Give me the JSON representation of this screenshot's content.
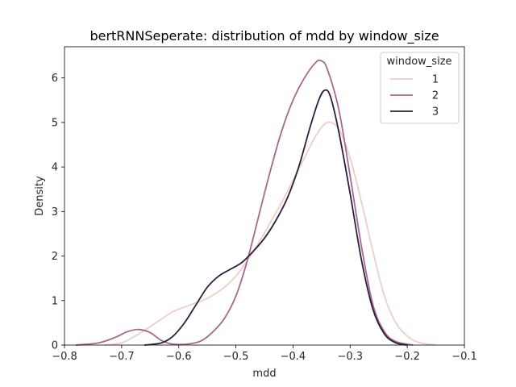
{
  "chart_data": {
    "type": "line",
    "title": "bertRNNSeperate: distribution of mdd by window_size",
    "xlabel": "mdd",
    "ylabel": "Density",
    "xlim": [
      -0.8,
      -0.1
    ],
    "ylim": [
      0,
      6.7
    ],
    "x_ticks": [
      -0.8,
      -0.7,
      -0.6,
      -0.5,
      -0.4,
      -0.3,
      -0.2,
      -0.1
    ],
    "x_tick_labels": [
      "−0.8",
      "−0.7",
      "−0.6",
      "−0.5",
      "−0.4",
      "−0.3",
      "−0.2",
      "−0.1"
    ],
    "y_ticks": [
      0,
      1,
      2,
      3,
      4,
      5,
      6
    ],
    "y_tick_labels": [
      "0",
      "1",
      "2",
      "3",
      "4",
      "5",
      "6"
    ],
    "grid": false,
    "legend": {
      "title": "window_size",
      "position": "top-right"
    },
    "series": [
      {
        "name": "1",
        "color": "#efcdc8",
        "points": [
          [
            -0.73,
            0.0
          ],
          [
            -0.7,
            0.05
          ],
          [
            -0.67,
            0.25
          ],
          [
            -0.64,
            0.5
          ],
          [
            -0.61,
            0.75
          ],
          [
            -0.58,
            0.9
          ],
          [
            -0.55,
            1.05
          ],
          [
            -0.52,
            1.3
          ],
          [
            -0.5,
            1.55
          ],
          [
            -0.48,
            1.9
          ],
          [
            -0.46,
            2.3
          ],
          [
            -0.44,
            2.75
          ],
          [
            -0.42,
            3.2
          ],
          [
            -0.4,
            3.7
          ],
          [
            -0.38,
            4.2
          ],
          [
            -0.36,
            4.7
          ],
          [
            -0.34,
            5.0
          ],
          [
            -0.32,
            4.85
          ],
          [
            -0.3,
            4.2
          ],
          [
            -0.28,
            3.2
          ],
          [
            -0.26,
            2.1
          ],
          [
            -0.24,
            1.1
          ],
          [
            -0.22,
            0.5
          ],
          [
            -0.2,
            0.2
          ],
          [
            -0.18,
            0.06
          ],
          [
            -0.15,
            0.0
          ]
        ]
      },
      {
        "name": "2",
        "color": "#a8678f",
        "points": [
          [
            -0.78,
            0.0
          ],
          [
            -0.74,
            0.05
          ],
          [
            -0.71,
            0.18
          ],
          [
            -0.69,
            0.3
          ],
          [
            -0.67,
            0.35
          ],
          [
            -0.65,
            0.28
          ],
          [
            -0.63,
            0.1
          ],
          [
            -0.61,
            0.02
          ],
          [
            -0.58,
            0.03
          ],
          [
            -0.56,
            0.1
          ],
          [
            -0.54,
            0.3
          ],
          [
            -0.52,
            0.6
          ],
          [
            -0.5,
            1.1
          ],
          [
            -0.48,
            1.9
          ],
          [
            -0.46,
            2.9
          ],
          [
            -0.44,
            3.9
          ],
          [
            -0.42,
            4.8
          ],
          [
            -0.4,
            5.5
          ],
          [
            -0.38,
            6.0
          ],
          [
            -0.36,
            6.35
          ],
          [
            -0.35,
            6.38
          ],
          [
            -0.34,
            6.2
          ],
          [
            -0.32,
            5.3
          ],
          [
            -0.3,
            3.8
          ],
          [
            -0.28,
            2.2
          ],
          [
            -0.26,
            0.9
          ],
          [
            -0.24,
            0.3
          ],
          [
            -0.22,
            0.08
          ],
          [
            -0.19,
            0.0
          ]
        ]
      },
      {
        "name": "3",
        "color": "#2d1e3e",
        "points": [
          [
            -0.66,
            0.0
          ],
          [
            -0.63,
            0.05
          ],
          [
            -0.61,
            0.2
          ],
          [
            -0.59,
            0.5
          ],
          [
            -0.57,
            0.9
          ],
          [
            -0.55,
            1.3
          ],
          [
            -0.53,
            1.55
          ],
          [
            -0.51,
            1.7
          ],
          [
            -0.49,
            1.85
          ],
          [
            -0.47,
            2.1
          ],
          [
            -0.45,
            2.4
          ],
          [
            -0.43,
            2.8
          ],
          [
            -0.41,
            3.3
          ],
          [
            -0.39,
            4.0
          ],
          [
            -0.37,
            4.9
          ],
          [
            -0.355,
            5.5
          ],
          [
            -0.345,
            5.72
          ],
          [
            -0.335,
            5.6
          ],
          [
            -0.32,
            4.8
          ],
          [
            -0.3,
            3.4
          ],
          [
            -0.28,
            1.9
          ],
          [
            -0.26,
            0.8
          ],
          [
            -0.24,
            0.25
          ],
          [
            -0.22,
            0.05
          ],
          [
            -0.2,
            0.0
          ]
        ]
      }
    ]
  }
}
